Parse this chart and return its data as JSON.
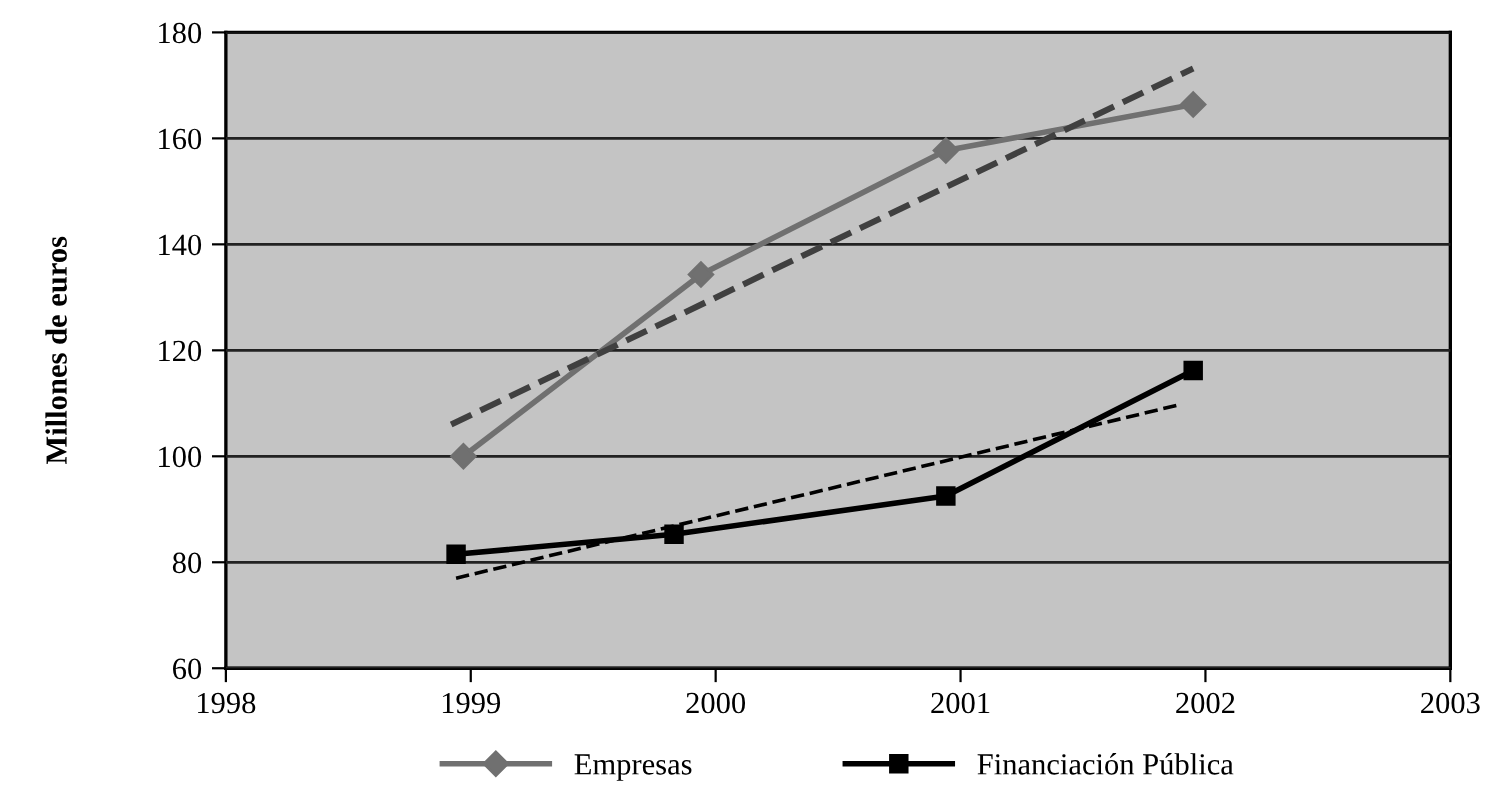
{
  "chart_data": {
    "type": "line",
    "ylabel": "Millones de euros",
    "xlim": [
      1998,
      2003
    ],
    "xticks": [
      1998,
      1999,
      2000,
      2001,
      2002,
      2003
    ],
    "ylim": [
      60,
      180
    ],
    "yticks": [
      60,
      80,
      100,
      120,
      140,
      160,
      180
    ],
    "grid": "y",
    "legend": "bottom",
    "series": [
      {
        "name": "Empresas",
        "color": "#707070",
        "marker": "diamond",
        "line_style": "solid",
        "x": [
          1998.97,
          1999.94,
          2000.94,
          2001.95
        ],
        "values": [
          100,
          134.3,
          157.7,
          166.4
        ]
      },
      {
        "name": "Financiación Pública",
        "color": "#000000",
        "marker": "square",
        "line_style": "solid",
        "x": [
          1998.94,
          1999.83,
          2000.94,
          2001.95
        ],
        "values": [
          81.5,
          85.3,
          92.5,
          116.2
        ]
      },
      {
        "color": "#404040",
        "marker": "none",
        "line_style": "dashed",
        "x": [
          1998.92,
          2001.95
        ],
        "values": [
          106,
          173.2
        ]
      },
      {
        "color": "#000000",
        "marker": "none",
        "line_style": "dashed",
        "x": [
          1998.94,
          2001.9
        ],
        "values": [
          77,
          109.8
        ]
      }
    ]
  }
}
